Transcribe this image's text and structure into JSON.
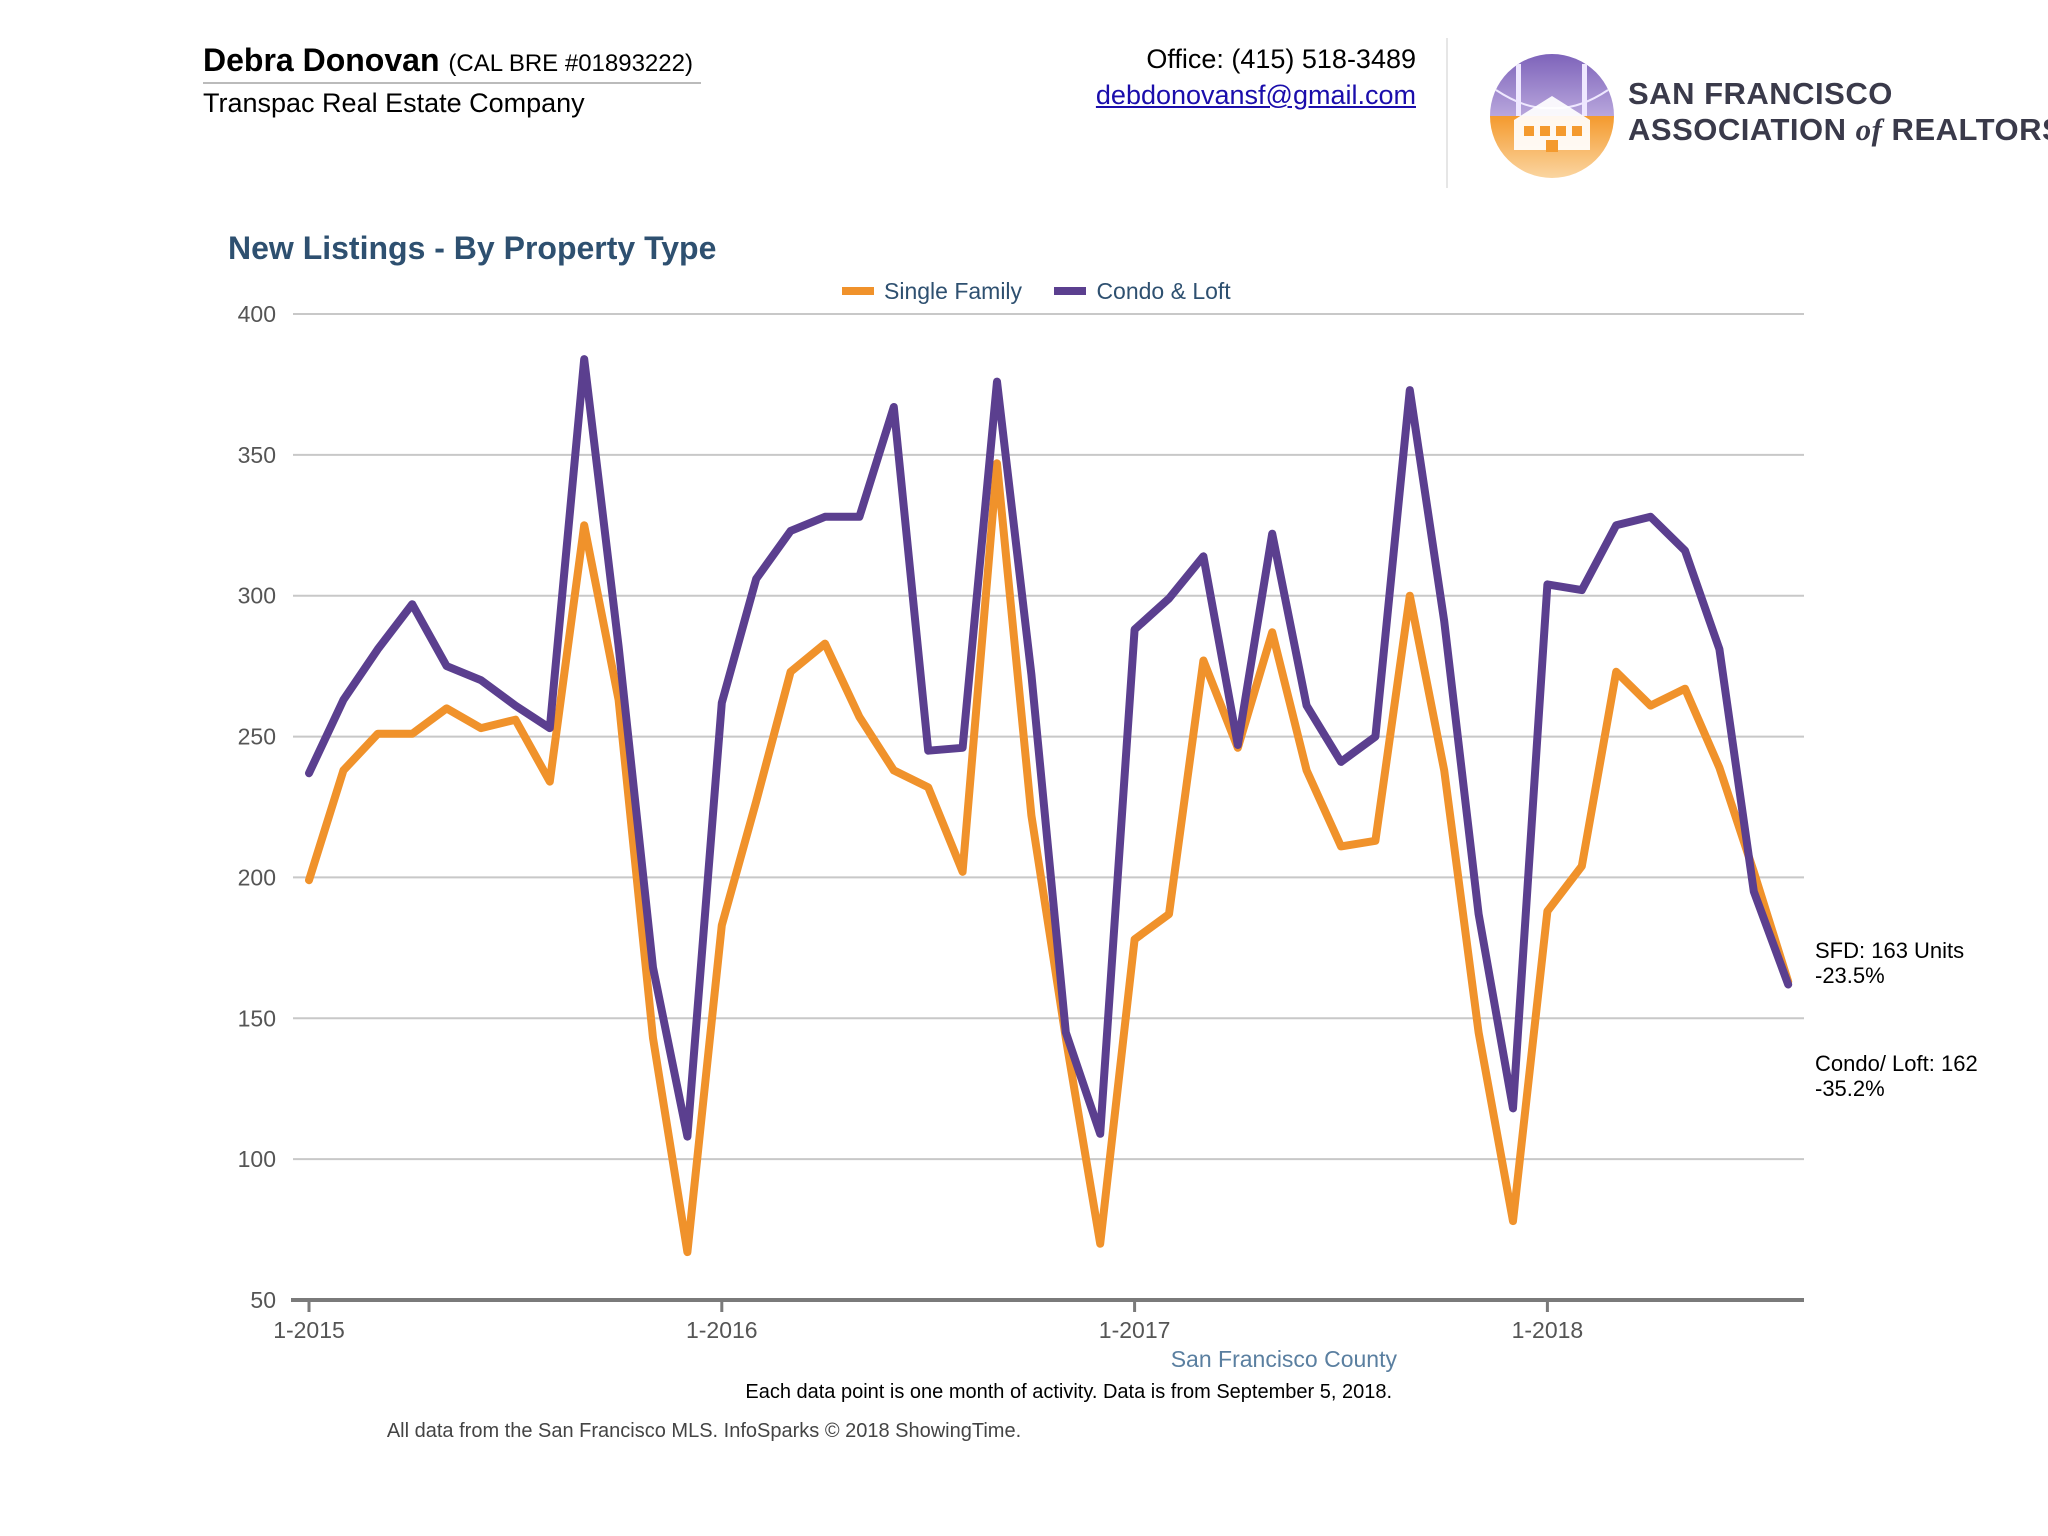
{
  "header": {
    "agent_name": "Debra Donovan",
    "agent_license": "(CAL BRE #01893222)",
    "company": "Transpac Real Estate Company",
    "office_phone": "Office: (415) 518-3489",
    "email": "debdonovansf@gmail.com"
  },
  "organization": {
    "line1": "SAN FRANCISCO",
    "line2_prefix": "ASSOCIATION ",
    "line2_of": "of",
    "line2_suffix": " REALTORS",
    "registered_mark": "®",
    "logo_icon": "golden-gate-bridge-house-logo"
  },
  "colors": {
    "single_family": "#f0922b",
    "condo_loft": "#5b3f8f",
    "title": "#2e5070",
    "grid": "#c8c8c8",
    "axis": "#7a7a7a"
  },
  "chart_data": {
    "type": "line",
    "title": "New Listings - By Property Type",
    "xlabel": "",
    "ylabel": "",
    "ylim": [
      50,
      400
    ],
    "yticks": [
      50,
      100,
      150,
      200,
      250,
      300,
      350,
      400
    ],
    "xtick_labels": [
      "1-2015",
      "1-2016",
      "1-2017",
      "1-2018"
    ],
    "xtick_month_index": [
      0,
      12,
      24,
      36
    ],
    "grid": true,
    "legend_position": "top-center",
    "series": [
      {
        "name": "Single Family",
        "color_key": "single_family",
        "values": [
          199,
          238,
          251,
          251,
          260,
          253,
          256,
          234,
          325,
          263,
          143,
          67,
          183,
          227,
          273,
          283,
          257,
          238,
          232,
          202,
          347,
          222,
          143,
          70,
          178,
          187,
          277,
          246,
          287,
          238,
          211,
          213,
          300,
          238,
          145,
          78,
          188,
          204,
          273,
          261,
          267,
          239,
          202,
          163
        ]
      },
      {
        "name": "Condo & Loft",
        "color_key": "condo_loft",
        "values": [
          237,
          263,
          281,
          297,
          275,
          270,
          261,
          253,
          384,
          282,
          168,
          108,
          262,
          306,
          323,
          328,
          328,
          367,
          245,
          246,
          376,
          272,
          145,
          109,
          288,
          299,
          314,
          247,
          322,
          261,
          241,
          250,
          373,
          291,
          187,
          118,
          304,
          302,
          325,
          328,
          316,
          281,
          195,
          162
        ]
      }
    ],
    "annotations": [
      {
        "series": "Single Family",
        "text": "SFD: 163 Units\n-23.5%"
      },
      {
        "series": "Condo & Loft",
        "text": "Condo/ Loft: 162\n-35.2%"
      }
    ]
  },
  "footer": {
    "county": "San Francisco County",
    "note": "Each data point is one month of activity. Data is from September 5, 2018.",
    "source": "All data from the San Francisco MLS. InfoSparks © 2018 ShowingTime."
  }
}
